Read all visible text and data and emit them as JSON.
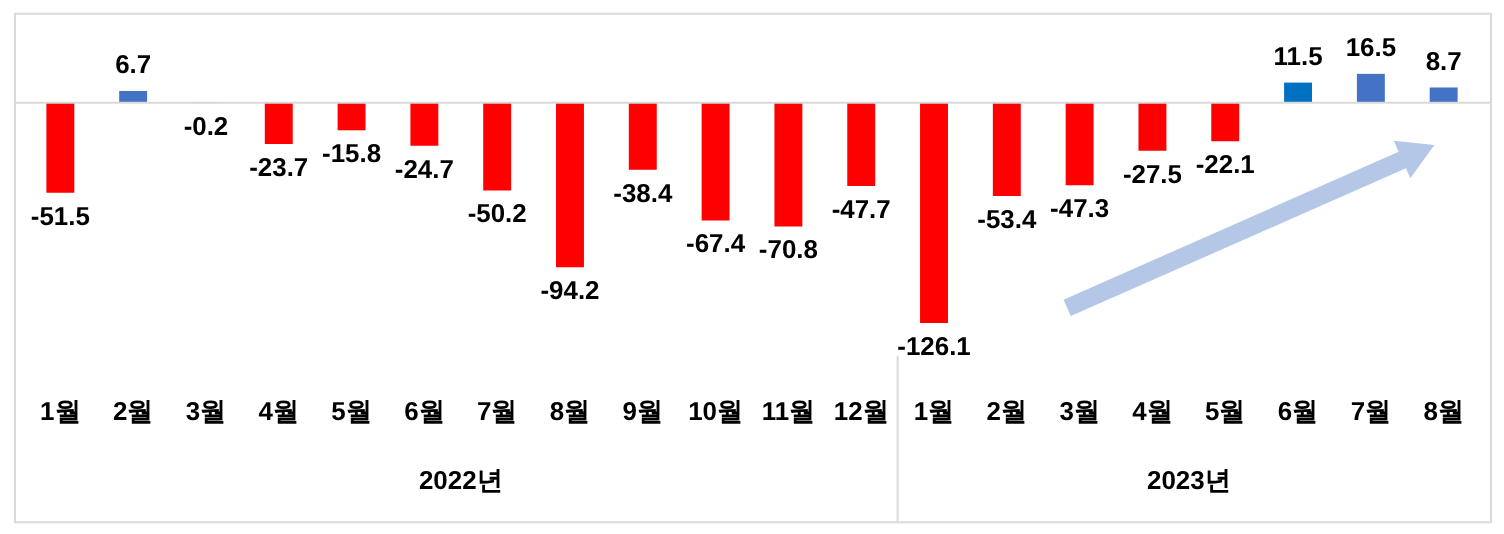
{
  "chart_data": {
    "type": "bar",
    "categories": [
      "1월",
      "2월",
      "3월",
      "4월",
      "5월",
      "6월",
      "7월",
      "8월",
      "9월",
      "10월",
      "11월",
      "12월",
      "1월",
      "2월",
      "3월",
      "4월",
      "5월",
      "6월",
      "7월",
      "8월"
    ],
    "values": [
      -51.5,
      6.7,
      -0.2,
      -23.7,
      -15.8,
      -24.7,
      -50.2,
      -94.2,
      -38.4,
      -67.4,
      -70.8,
      -47.7,
      -126.1,
      -53.4,
      -47.3,
      -27.5,
      -22.1,
      11.5,
      16.5,
      8.7
    ],
    "colors": [
      "#ff0000",
      "#4472c4",
      "#ff0000",
      "#ff0000",
      "#ff0000",
      "#ff0000",
      "#ff0000",
      "#ff0000",
      "#ff0000",
      "#ff0000",
      "#ff0000",
      "#ff0000",
      "#ff0000",
      "#ff0000",
      "#ff0000",
      "#ff0000",
      "#ff0000",
      "#0070c0",
      "#4472c4",
      "#4472c4"
    ],
    "annotations": [
      "2022년",
      "2023년"
    ],
    "data_labels": true
  }
}
